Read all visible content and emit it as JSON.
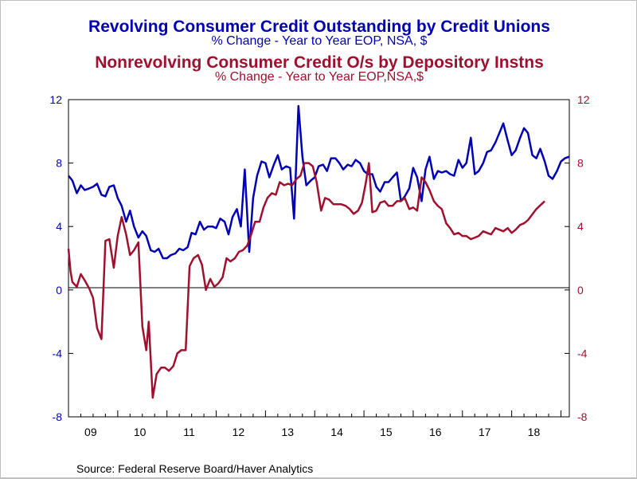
{
  "chart_data": {
    "type": "line",
    "titles": [
      {
        "text": "Revolving Consumer Credit Outstanding by Credit Unions",
        "color": "#0000b4"
      },
      {
        "text": "% Change - Year to Year     EOP, NSA, $",
        "color": "#0000b4"
      },
      {
        "text": "Nonrevolving Consumer Credit O/s by Depository Instns",
        "color": "#a0102e"
      },
      {
        "text": "% Change - Year to Year     EOP,NSA,$",
        "color": "#a0102e"
      }
    ],
    "source": "Source:  Federal Reserve Board/Haver Analytics",
    "ylim": [
      -8,
      12
    ],
    "y_ticks": [
      "12",
      "8",
      "4",
      "0",
      "-4",
      "-8"
    ],
    "x_ticks": [
      "09",
      "10",
      "11",
      "12",
      "13",
      "14",
      "15",
      "16",
      "17",
      "18"
    ],
    "x_range": [
      2009.0,
      2019.0
    ],
    "zero_line": true,
    "grid": false,
    "series": [
      {
        "axis": "left",
        "color": "#0000b4",
        "points": [
          [
            2009.0,
            7.2
          ],
          [
            2009.08,
            6.9
          ],
          [
            2009.17,
            6.1
          ],
          [
            2009.25,
            6.6
          ],
          [
            2009.33,
            6.3
          ],
          [
            2009.42,
            6.4
          ],
          [
            2009.5,
            6.5
          ],
          [
            2009.58,
            6.7
          ],
          [
            2009.67,
            6.0
          ],
          [
            2009.75,
            5.9
          ],
          [
            2009.83,
            6.5
          ],
          [
            2009.92,
            6.6
          ],
          [
            2010.0,
            5.8
          ],
          [
            2010.08,
            5.3
          ],
          [
            2010.17,
            4.3
          ],
          [
            2010.25,
            5.0
          ],
          [
            2010.33,
            4.0
          ],
          [
            2010.42,
            3.3
          ],
          [
            2010.5,
            3.7
          ],
          [
            2010.58,
            3.4
          ],
          [
            2010.67,
            2.5
          ],
          [
            2010.75,
            2.4
          ],
          [
            2010.83,
            2.6
          ],
          [
            2010.92,
            2.0
          ],
          [
            2011.0,
            2.0
          ],
          [
            2011.08,
            2.2
          ],
          [
            2011.17,
            2.3
          ],
          [
            2011.25,
            2.6
          ],
          [
            2011.33,
            2.5
          ],
          [
            2011.42,
            2.7
          ],
          [
            2011.5,
            3.6
          ],
          [
            2011.58,
            3.5
          ],
          [
            2011.67,
            4.3
          ],
          [
            2011.75,
            3.8
          ],
          [
            2011.83,
            4.0
          ],
          [
            2011.92,
            4.0
          ],
          [
            2012.0,
            3.9
          ],
          [
            2012.08,
            4.5
          ],
          [
            2012.17,
            4.3
          ],
          [
            2012.25,
            3.5
          ],
          [
            2012.33,
            4.6
          ],
          [
            2012.42,
            5.1
          ],
          [
            2012.5,
            4.0
          ],
          [
            2012.58,
            7.6
          ],
          [
            2012.67,
            2.4
          ],
          [
            2012.75,
            5.8
          ],
          [
            2012.83,
            7.2
          ],
          [
            2012.92,
            8.1
          ],
          [
            2013.0,
            8.0
          ],
          [
            2013.08,
            7.1
          ],
          [
            2013.17,
            7.9
          ],
          [
            2013.25,
            8.5
          ],
          [
            2013.33,
            7.6
          ],
          [
            2013.42,
            7.8
          ],
          [
            2013.5,
            7.7
          ],
          [
            2013.58,
            4.5
          ],
          [
            2013.67,
            11.6
          ],
          [
            2013.75,
            8.4
          ],
          [
            2013.83,
            6.6
          ],
          [
            2013.92,
            6.9
          ],
          [
            2014.0,
            7.1
          ],
          [
            2014.08,
            7.8
          ],
          [
            2014.17,
            7.9
          ],
          [
            2014.25,
            7.5
          ],
          [
            2014.33,
            8.3
          ],
          [
            2014.42,
            8.3
          ],
          [
            2014.5,
            8.0
          ],
          [
            2014.58,
            7.6
          ],
          [
            2014.67,
            7.9
          ],
          [
            2014.75,
            7.8
          ],
          [
            2014.83,
            8.2
          ],
          [
            2014.92,
            8.0
          ],
          [
            2015.0,
            7.5
          ],
          [
            2015.08,
            7.3
          ],
          [
            2015.17,
            7.3
          ],
          [
            2015.25,
            6.5
          ],
          [
            2015.33,
            6.2
          ],
          [
            2015.42,
            6.8
          ],
          [
            2015.5,
            6.8
          ],
          [
            2015.58,
            7.1
          ],
          [
            2015.67,
            7.4
          ],
          [
            2015.75,
            5.6
          ],
          [
            2015.83,
            5.9
          ],
          [
            2015.92,
            6.4
          ],
          [
            2016.0,
            7.7
          ],
          [
            2016.08,
            7.1
          ],
          [
            2016.17,
            5.6
          ],
          [
            2016.25,
            7.6
          ],
          [
            2016.33,
            8.4
          ],
          [
            2016.42,
            7.0
          ],
          [
            2016.5,
            7.5
          ],
          [
            2016.58,
            7.4
          ],
          [
            2016.67,
            7.5
          ],
          [
            2016.75,
            7.3
          ],
          [
            2016.83,
            7.2
          ],
          [
            2016.92,
            8.2
          ],
          [
            2017.0,
            7.7
          ],
          [
            2017.08,
            8.0
          ],
          [
            2017.17,
            9.6
          ],
          [
            2017.25,
            7.3
          ],
          [
            2017.33,
            7.5
          ],
          [
            2017.42,
            8.0
          ],
          [
            2017.5,
            8.7
          ],
          [
            2017.58,
            8.8
          ],
          [
            2017.67,
            9.3
          ],
          [
            2017.75,
            9.9
          ],
          [
            2017.83,
            10.5
          ],
          [
            2017.92,
            9.4
          ],
          [
            2018.0,
            8.5
          ],
          [
            2018.08,
            8.8
          ],
          [
            2018.17,
            9.6
          ],
          [
            2018.25,
            10.2
          ],
          [
            2018.33,
            9.9
          ],
          [
            2018.42,
            8.5
          ],
          [
            2018.5,
            8.3
          ],
          [
            2018.58,
            8.9
          ],
          [
            2018.67,
            8.1
          ],
          [
            2018.75,
            7.2
          ],
          [
            2018.83,
            7.0
          ],
          [
            2018.92,
            7.5
          ],
          [
            2019.0,
            8.1
          ],
          [
            2019.08,
            8.3
          ],
          [
            2019.17,
            8.4
          ]
        ]
      },
      {
        "axis": "right",
        "color": "#a0102e",
        "points": [
          [
            2009.0,
            2.6
          ],
          [
            2009.04,
            1.2
          ],
          [
            2009.08,
            0.5
          ],
          [
            2009.17,
            0.2
          ],
          [
            2009.25,
            1.0
          ],
          [
            2009.33,
            0.6
          ],
          [
            2009.42,
            0.1
          ],
          [
            2009.5,
            -0.5
          ],
          [
            2009.58,
            -2.4
          ],
          [
            2009.67,
            -3.1
          ],
          [
            2009.75,
            3.1
          ],
          [
            2009.83,
            3.2
          ],
          [
            2009.92,
            1.4
          ],
          [
            2010.0,
            3.4
          ],
          [
            2010.08,
            4.6
          ],
          [
            2010.17,
            3.5
          ],
          [
            2010.25,
            2.2
          ],
          [
            2010.33,
            2.5
          ],
          [
            2010.42,
            3.0
          ],
          [
            2010.5,
            -2.3
          ],
          [
            2010.58,
            -3.8
          ],
          [
            2010.63,
            -2.0
          ],
          [
            2010.71,
            -6.8
          ],
          [
            2010.79,
            -5.3
          ],
          [
            2010.88,
            -4.9
          ],
          [
            2010.96,
            -4.9
          ],
          [
            2011.04,
            -5.1
          ],
          [
            2011.13,
            -4.8
          ],
          [
            2011.21,
            -4.0
          ],
          [
            2011.29,
            -3.8
          ],
          [
            2011.38,
            -3.8
          ],
          [
            2011.46,
            1.5
          ],
          [
            2011.54,
            2.0
          ],
          [
            2011.63,
            2.2
          ],
          [
            2011.71,
            1.6
          ],
          [
            2011.79,
            0.0
          ],
          [
            2011.88,
            0.7
          ],
          [
            2011.96,
            0.2
          ],
          [
            2012.04,
            0.4
          ],
          [
            2012.13,
            0.8
          ],
          [
            2012.21,
            2.0
          ],
          [
            2012.29,
            1.8
          ],
          [
            2012.38,
            2.0
          ],
          [
            2012.46,
            2.4
          ],
          [
            2012.54,
            2.5
          ],
          [
            2012.63,
            2.8
          ],
          [
            2012.71,
            3.5
          ],
          [
            2012.79,
            4.3
          ],
          [
            2012.88,
            4.3
          ],
          [
            2012.96,
            5.2
          ],
          [
            2013.04,
            5.8
          ],
          [
            2013.13,
            6.1
          ],
          [
            2013.21,
            6.0
          ],
          [
            2013.29,
            6.8
          ],
          [
            2013.38,
            6.6
          ],
          [
            2013.46,
            6.7
          ],
          [
            2013.54,
            6.6
          ],
          [
            2013.63,
            7.0
          ],
          [
            2013.71,
            7.2
          ],
          [
            2013.79,
            8.0
          ],
          [
            2013.88,
            8.0
          ],
          [
            2013.96,
            7.8
          ],
          [
            2014.04,
            6.8
          ],
          [
            2014.13,
            5.0
          ],
          [
            2014.21,
            5.8
          ],
          [
            2014.29,
            5.7
          ],
          [
            2014.38,
            5.4
          ],
          [
            2014.46,
            5.4
          ],
          [
            2014.54,
            5.4
          ],
          [
            2014.63,
            5.3
          ],
          [
            2014.71,
            5.1
          ],
          [
            2014.79,
            4.8
          ],
          [
            2014.88,
            5.0
          ],
          [
            2014.96,
            5.5
          ],
          [
            2015.04,
            6.8
          ],
          [
            2015.1,
            8.0
          ],
          [
            2015.17,
            4.9
          ],
          [
            2015.25,
            5.0
          ],
          [
            2015.33,
            5.5
          ],
          [
            2015.42,
            5.6
          ],
          [
            2015.5,
            5.3
          ],
          [
            2015.58,
            5.3
          ],
          [
            2015.67,
            5.6
          ],
          [
            2015.75,
            5.6
          ],
          [
            2015.83,
            5.8
          ],
          [
            2015.92,
            5.1
          ],
          [
            2016.0,
            5.2
          ],
          [
            2016.08,
            5.0
          ],
          [
            2016.17,
            7.1
          ],
          [
            2016.25,
            6.8
          ],
          [
            2016.33,
            6.3
          ],
          [
            2016.42,
            5.6
          ],
          [
            2016.5,
            5.3
          ],
          [
            2016.58,
            5.1
          ],
          [
            2016.67,
            4.2
          ],
          [
            2016.75,
            3.9
          ],
          [
            2016.83,
            3.5
          ],
          [
            2016.92,
            3.6
          ],
          [
            2017.0,
            3.4
          ],
          [
            2017.08,
            3.4
          ],
          [
            2017.17,
            3.2
          ],
          [
            2017.25,
            3.3
          ],
          [
            2017.33,
            3.4
          ],
          [
            2017.42,
            3.7
          ],
          [
            2017.5,
            3.6
          ],
          [
            2017.58,
            3.5
          ],
          [
            2017.67,
            3.9
          ],
          [
            2017.75,
            3.8
          ],
          [
            2017.83,
            3.7
          ],
          [
            2017.92,
            3.9
          ],
          [
            2018.0,
            3.6
          ],
          [
            2018.08,
            3.8
          ],
          [
            2018.17,
            4.1
          ],
          [
            2018.25,
            4.2
          ],
          [
            2018.33,
            4.4
          ],
          [
            2018.5,
            5.1
          ],
          [
            2018.67,
            5.6
          ]
        ]
      }
    ]
  }
}
